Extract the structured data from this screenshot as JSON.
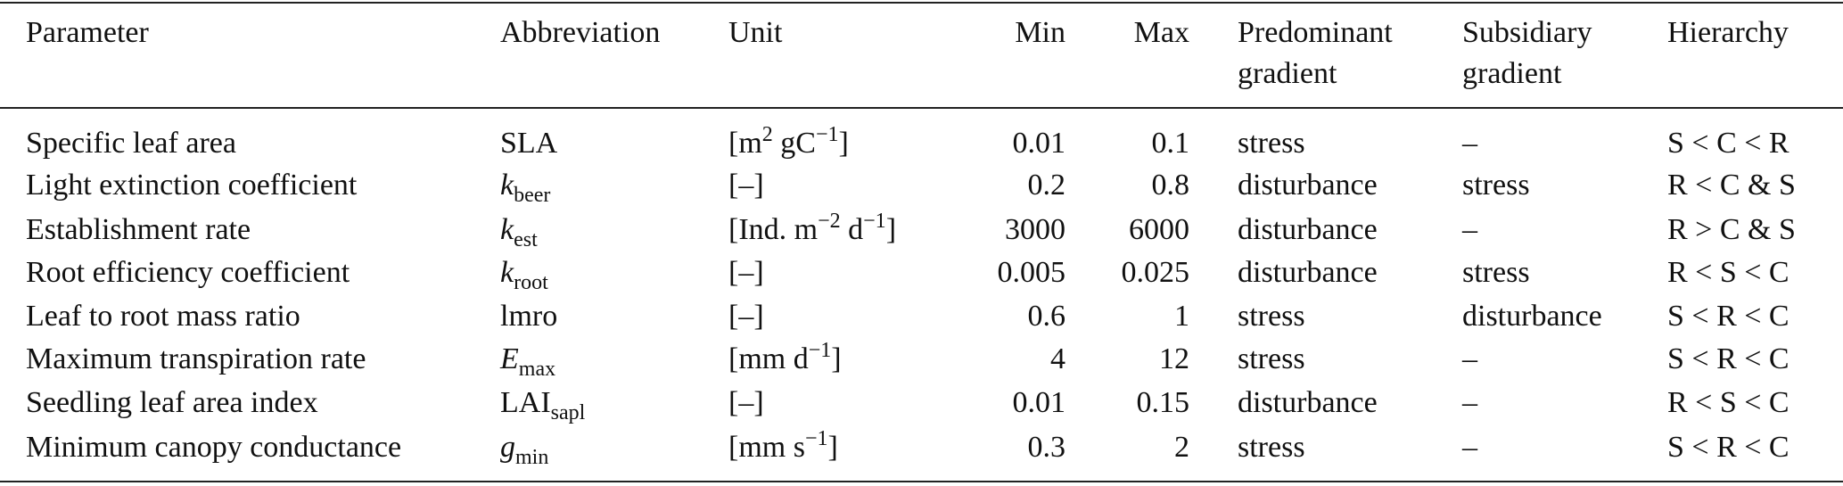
{
  "table": {
    "header": [
      "Parameter",
      "Abbreviation",
      "Unit",
      "Min",
      "Max",
      "Predominant gradient",
      "Subsidiary gradient",
      "Hierarchy"
    ],
    "rows": [
      {
        "parameter": "Specific leaf area",
        "abbreviation": [
          {
            "text": "SLA"
          }
        ],
        "unit": [
          {
            "text": "[m"
          },
          {
            "sup": "2"
          },
          {
            "text": " gC"
          },
          {
            "sup": "−1"
          },
          {
            "text": "]"
          }
        ],
        "min": 0.01,
        "max": 0.1,
        "predominant": "stress",
        "subsidiary": "–",
        "hierarchy": "S < C < R"
      },
      {
        "parameter": "Light extinction coefficient",
        "abbreviation": [
          {
            "var": "k"
          },
          {
            "sub": "beer"
          }
        ],
        "unit": [
          {
            "text": "[–]"
          }
        ],
        "min": 0.2,
        "max": 0.8,
        "predominant": "disturbance",
        "subsidiary": "stress",
        "hierarchy": "R < C & S"
      },
      {
        "parameter": "Establishment rate",
        "abbreviation": [
          {
            "var": "k"
          },
          {
            "sub": "est"
          }
        ],
        "unit": [
          {
            "text": "[Ind. m"
          },
          {
            "sup": "−2"
          },
          {
            "text": " d"
          },
          {
            "sup": "−1"
          },
          {
            "text": "]"
          }
        ],
        "min": 3000,
        "max": 6000,
        "predominant": "disturbance",
        "subsidiary": "–",
        "hierarchy": "R > C & S"
      },
      {
        "parameter": "Root efficiency coefficient",
        "abbreviation": [
          {
            "var": "k"
          },
          {
            "sub": "root"
          }
        ],
        "unit": [
          {
            "text": "[–]"
          }
        ],
        "min": 0.005,
        "max": 0.025,
        "predominant": "disturbance",
        "subsidiary": "stress",
        "hierarchy": "R < S < C"
      },
      {
        "parameter": "Leaf to root mass ratio",
        "abbreviation": [
          {
            "text": "lmro"
          }
        ],
        "unit": [
          {
            "text": "[–]"
          }
        ],
        "min": 0.6,
        "max": 1,
        "predominant": "stress",
        "subsidiary": "disturbance",
        "hierarchy": "S <  R < C"
      },
      {
        "parameter": "Maximum transpiration rate",
        "abbreviation": [
          {
            "var": "E"
          },
          {
            "sub": "max"
          }
        ],
        "unit": [
          {
            "text": "[mm d"
          },
          {
            "sup": "−1"
          },
          {
            "text": "]"
          }
        ],
        "min": 4,
        "max": 12,
        "predominant": "stress",
        "subsidiary": "–",
        "hierarchy": "S < R < C"
      },
      {
        "parameter": "Seedling leaf area index",
        "abbreviation": [
          {
            "text": "LAI"
          },
          {
            "sub": "sapl"
          }
        ],
        "unit": [
          {
            "text": "[–]"
          }
        ],
        "min": 0.01,
        "max": 0.15,
        "predominant": "disturbance",
        "subsidiary": "–",
        "hierarchy": "R < S < C"
      },
      {
        "parameter": "Minimum canopy conductance",
        "abbreviation": [
          {
            "var": "g"
          },
          {
            "sub": "min"
          }
        ],
        "unit": [
          {
            "text": "[mm s"
          },
          {
            "sup": "−1"
          },
          {
            "text": "]"
          }
        ],
        "min": 0.3,
        "max": 2,
        "predominant": "stress",
        "subsidiary": "–",
        "hierarchy": "S < R < C"
      }
    ]
  }
}
